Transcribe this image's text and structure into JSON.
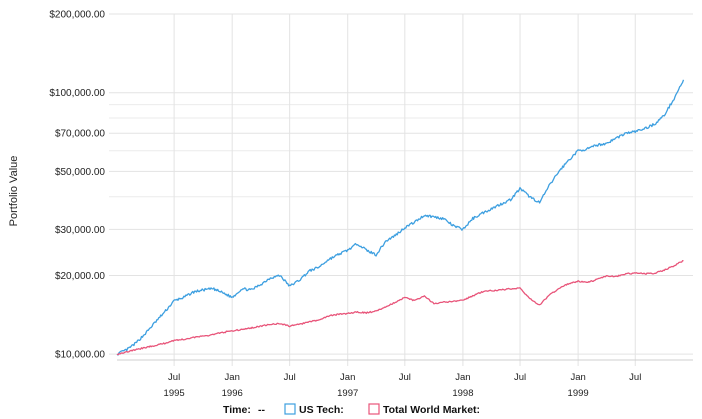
{
  "chart_data": {
    "type": "line",
    "ylabel": "Portfolio Value",
    "yscale": "log",
    "ylim": [
      9500,
      200000
    ],
    "y_ticks": [
      {
        "value": 10000,
        "label": "$10,000.00"
      },
      {
        "value": 20000,
        "label": "$20,000.00"
      },
      {
        "value": 30000,
        "label": "$30,000.00"
      },
      {
        "value": 50000,
        "label": "$50,000.00"
      },
      {
        "value": 70000,
        "label": "$70,000.00"
      },
      {
        "value": 100000,
        "label": "$100,000.00"
      },
      {
        "value": 200000,
        "label": "$200,000.00"
      }
    ],
    "y_minor_gridlines": [
      40000,
      60000,
      80000,
      90000
    ],
    "xlim": [
      "1995-01-01",
      "1999-12-31"
    ],
    "x_ticks": [
      {
        "date": "1995-07-01",
        "label": "Jul",
        "sublabel": "1995"
      },
      {
        "date": "1996-01-01",
        "label": "Jan",
        "sublabel": "1996"
      },
      {
        "date": "1996-07-01",
        "label": "Jul",
        "sublabel": ""
      },
      {
        "date": "1997-01-01",
        "label": "Jan",
        "sublabel": "1997"
      },
      {
        "date": "1997-07-01",
        "label": "Jul",
        "sublabel": ""
      },
      {
        "date": "1998-01-01",
        "label": "Jan",
        "sublabel": "1998"
      },
      {
        "date": "1998-07-01",
        "label": "Jul",
        "sublabel": ""
      },
      {
        "date": "1999-01-01",
        "label": "Jan",
        "sublabel": "1999"
      },
      {
        "date": "1999-07-01",
        "label": "Jul",
        "sublabel": ""
      }
    ],
    "grid": true,
    "legend": {
      "placement": "bottom",
      "time_label": "Time:",
      "time_value": "--"
    },
    "series": [
      {
        "name": "US Tech:",
        "color": "#3d9fe0",
        "points": [
          [
            "1995-01-01",
            10000
          ],
          [
            "1995-02-01",
            10400
          ],
          [
            "1995-03-01",
            11000
          ],
          [
            "1995-04-01",
            12000
          ],
          [
            "1995-05-01",
            13200
          ],
          [
            "1995-06-01",
            14500
          ],
          [
            "1995-07-01",
            16000
          ],
          [
            "1995-08-01",
            16500
          ],
          [
            "1995-09-01",
            17300
          ],
          [
            "1995-10-01",
            17600
          ],
          [
            "1995-11-01",
            17800
          ],
          [
            "1995-12-01",
            17200
          ],
          [
            "1996-01-01",
            16500
          ],
          [
            "1996-02-01",
            17800
          ],
          [
            "1996-03-01",
            17600
          ],
          [
            "1996-04-01",
            18500
          ],
          [
            "1996-05-01",
            19600
          ],
          [
            "1996-06-01",
            20000
          ],
          [
            "1996-07-01",
            18200
          ],
          [
            "1996-08-01",
            19200
          ],
          [
            "1996-09-01",
            20800
          ],
          [
            "1996-10-01",
            21500
          ],
          [
            "1996-11-01",
            23000
          ],
          [
            "1996-12-01",
            24000
          ],
          [
            "1997-01-01",
            25000
          ],
          [
            "1997-02-01",
            26500
          ],
          [
            "1997-03-01",
            25000
          ],
          [
            "1997-04-01",
            24000
          ],
          [
            "1997-05-01",
            27000
          ],
          [
            "1997-06-01",
            28500
          ],
          [
            "1997-07-01",
            30500
          ],
          [
            "1997-08-01",
            32000
          ],
          [
            "1997-09-01",
            34000
          ],
          [
            "1997-10-01",
            33500
          ],
          [
            "1997-11-01",
            33000
          ],
          [
            "1997-12-01",
            31000
          ],
          [
            "1998-01-01",
            30000
          ],
          [
            "1998-02-01",
            33000
          ],
          [
            "1998-03-01",
            34500
          ],
          [
            "1998-04-01",
            36000
          ],
          [
            "1998-05-01",
            37500
          ],
          [
            "1998-06-01",
            39000
          ],
          [
            "1998-07-01",
            43000
          ],
          [
            "1998-08-01",
            40000
          ],
          [
            "1998-09-01",
            38000
          ],
          [
            "1998-10-01",
            44000
          ],
          [
            "1998-11-01",
            50000
          ],
          [
            "1998-12-01",
            55000
          ],
          [
            "1999-01-01",
            60000
          ],
          [
            "1999-02-01",
            61000
          ],
          [
            "1999-03-01",
            63000
          ],
          [
            "1999-04-01",
            64000
          ],
          [
            "1999-05-01",
            67000
          ],
          [
            "1999-06-01",
            70000
          ],
          [
            "1999-07-01",
            71000
          ],
          [
            "1999-08-01",
            73000
          ],
          [
            "1999-09-01",
            76000
          ],
          [
            "1999-10-01",
            82000
          ],
          [
            "1999-11-01",
            95000
          ],
          [
            "1999-12-01",
            112000
          ]
        ]
      },
      {
        "name": "Total World Market:",
        "color": "#e8557a",
        "points": [
          [
            "1995-01-01",
            10000
          ],
          [
            "1995-02-01",
            10200
          ],
          [
            "1995-03-01",
            10400
          ],
          [
            "1995-04-01",
            10600
          ],
          [
            "1995-05-01",
            10800
          ],
          [
            "1995-06-01",
            11000
          ],
          [
            "1995-07-01",
            11300
          ],
          [
            "1995-08-01",
            11400
          ],
          [
            "1995-09-01",
            11600
          ],
          [
            "1995-10-01",
            11700
          ],
          [
            "1995-11-01",
            11900
          ],
          [
            "1995-12-01",
            12100
          ],
          [
            "1996-01-01",
            12300
          ],
          [
            "1996-02-01",
            12400
          ],
          [
            "1996-03-01",
            12600
          ],
          [
            "1996-04-01",
            12800
          ],
          [
            "1996-05-01",
            13000
          ],
          [
            "1996-06-01",
            13100
          ],
          [
            "1996-07-01",
            12800
          ],
          [
            "1996-08-01",
            13000
          ],
          [
            "1996-09-01",
            13300
          ],
          [
            "1996-10-01",
            13500
          ],
          [
            "1996-11-01",
            14000
          ],
          [
            "1996-12-01",
            14200
          ],
          [
            "1997-01-01",
            14300
          ],
          [
            "1997-02-01",
            14500
          ],
          [
            "1997-03-01",
            14400
          ],
          [
            "1997-04-01",
            14600
          ],
          [
            "1997-05-01",
            15200
          ],
          [
            "1997-06-01",
            15800
          ],
          [
            "1997-07-01",
            16500
          ],
          [
            "1997-08-01",
            16000
          ],
          [
            "1997-09-01",
            16700
          ],
          [
            "1997-10-01",
            15600
          ],
          [
            "1997-11-01",
            15800
          ],
          [
            "1997-12-01",
            15900
          ],
          [
            "1998-01-01",
            16100
          ],
          [
            "1998-02-01",
            16700
          ],
          [
            "1998-03-01",
            17300
          ],
          [
            "1998-04-01",
            17500
          ],
          [
            "1998-05-01",
            17600
          ],
          [
            "1998-06-01",
            17800
          ],
          [
            "1998-07-01",
            17900
          ],
          [
            "1998-08-01",
            16300
          ],
          [
            "1998-09-01",
            15400
          ],
          [
            "1998-10-01",
            16800
          ],
          [
            "1998-11-01",
            17800
          ],
          [
            "1998-12-01",
            18600
          ],
          [
            "1999-01-01",
            19000
          ],
          [
            "1999-02-01",
            18800
          ],
          [
            "1999-03-01",
            19300
          ],
          [
            "1999-04-01",
            19900
          ],
          [
            "1999-05-01",
            19800
          ],
          [
            "1999-06-01",
            20300
          ],
          [
            "1999-07-01",
            20400
          ],
          [
            "1999-08-01",
            20300
          ],
          [
            "1999-09-01",
            20400
          ],
          [
            "1999-10-01",
            21000
          ],
          [
            "1999-11-01",
            21800
          ],
          [
            "1999-12-01",
            22800
          ]
        ]
      }
    ]
  }
}
